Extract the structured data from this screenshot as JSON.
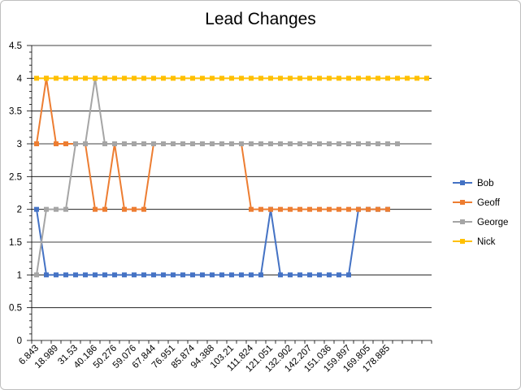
{
  "chart_data": {
    "type": "line",
    "title": "Lead Changes",
    "xlabel": "",
    "ylabel": "",
    "ylim": [
      0,
      4.5
    ],
    "ytick_labels": [
      "0",
      "0.5",
      "1",
      "1.5",
      "2",
      "2.5",
      "3",
      "3.5",
      "4",
      "4.5"
    ],
    "x_tick_labels": [
      "6.843",
      "18.989",
      "31.53",
      "40.186",
      "50.276",
      "59.076",
      "67.844",
      "76.951",
      "85.874",
      "94.388",
      "103.21",
      "111.824",
      "121.051",
      "132.902",
      "142.207",
      "151.036",
      "159.897",
      "169.805",
      "178.885"
    ],
    "x": [
      "6.843",
      "",
      "18.989",
      "",
      "31.53",
      "",
      "40.186",
      "",
      "50.276",
      "",
      "59.076",
      "",
      "67.844",
      "",
      "76.951",
      "",
      "85.874",
      "",
      "94.388",
      "",
      "103.21",
      "",
      "111.824",
      "",
      "121.051",
      "",
      "132.902",
      "",
      "142.207",
      "",
      "151.036",
      "",
      "159.897",
      "",
      "169.805",
      "",
      "178.885",
      "",
      "",
      "",
      ""
    ],
    "grid": true,
    "legend_position": "right",
    "series": [
      {
        "name": "Bob",
        "color": "#4472C4",
        "values": [
          2,
          1,
          1,
          1,
          1,
          1,
          1,
          1,
          1,
          1,
          1,
          1,
          1,
          1,
          1,
          1,
          1,
          1,
          1,
          1,
          1,
          1,
          1,
          1,
          2,
          1,
          1,
          1,
          1,
          1,
          1,
          1,
          1,
          2,
          2,
          2,
          2,
          null,
          null,
          null,
          null
        ]
      },
      {
        "name": "Geoff",
        "color": "#ED7D31",
        "values": [
          3,
          4,
          3,
          3,
          3,
          3,
          2,
          2,
          3,
          2,
          2,
          2,
          3,
          3,
          3,
          3,
          3,
          3,
          3,
          3,
          3,
          3,
          2,
          2,
          2,
          2,
          2,
          2,
          2,
          2,
          2,
          2,
          2,
          2,
          2,
          2,
          2,
          null,
          null,
          null,
          null
        ]
      },
      {
        "name": "George",
        "color": "#A5A5A5",
        "values": [
          1,
          2,
          2,
          2,
          3,
          3,
          4,
          3,
          3,
          3,
          3,
          3,
          3,
          3,
          3,
          3,
          3,
          3,
          3,
          3,
          3,
          3,
          3,
          3,
          3,
          3,
          3,
          3,
          3,
          3,
          3,
          3,
          3,
          3,
          3,
          3,
          3,
          3,
          null,
          null,
          null
        ]
      },
      {
        "name": "Nick",
        "color": "#FFC000",
        "values": [
          4,
          4,
          4,
          4,
          4,
          4,
          4,
          4,
          4,
          4,
          4,
          4,
          4,
          4,
          4,
          4,
          4,
          4,
          4,
          4,
          4,
          4,
          4,
          4,
          4,
          4,
          4,
          4,
          4,
          4,
          4,
          4,
          4,
          4,
          4,
          4,
          4,
          4,
          4,
          4,
          4
        ]
      }
    ]
  }
}
